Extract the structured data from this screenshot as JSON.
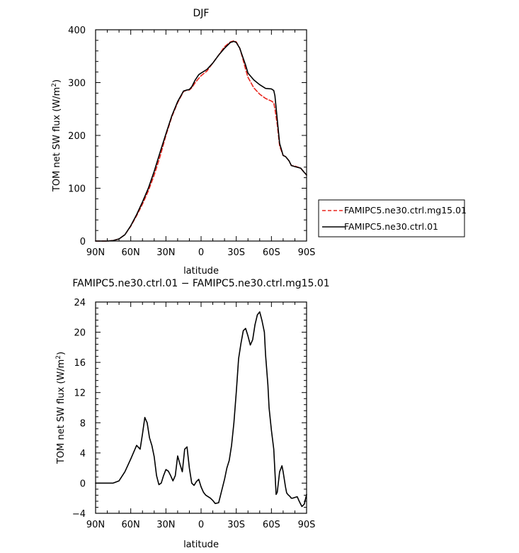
{
  "chart_data": [
    {
      "type": "line",
      "title": "DJF",
      "xlabel": "latitude",
      "ylabel": "TOM net SW flux (W/m",
      "ylabel_sup": "2",
      "ylabel_close": ")",
      "xlim": [
        -90,
        90
      ],
      "ylim": [
        0,
        400
      ],
      "xticks": [
        -90,
        -60,
        -30,
        0,
        30,
        60,
        90
      ],
      "xtick_labels": [
        "90N",
        "60N",
        "30N",
        "0",
        "30S",
        "60S",
        "90S"
      ],
      "yticks": [
        0,
        100,
        200,
        300,
        400
      ],
      "ytick_labels": [
        "0",
        "100",
        "200",
        "300",
        "400"
      ],
      "grid": false,
      "legend_position": "right",
      "series": [
        {
          "name": "FAMIPC5.ne30.ctrl.mg15.01",
          "color": "#e8241c",
          "dash": "dashed",
          "x": [
            -90,
            -80,
            -75,
            -70,
            -65,
            -60,
            -55,
            -50,
            -45,
            -40,
            -35,
            -30,
            -25,
            -20,
            -15,
            -12,
            -10,
            -8,
            -5,
            -2,
            0,
            5,
            10,
            15,
            20,
            25,
            28,
            30,
            33,
            35,
            38,
            40,
            45,
            50,
            55,
            60,
            62,
            63,
            65,
            67,
            70,
            72,
            75,
            77,
            80,
            85,
            88,
            90
          ],
          "y": [
            0,
            0,
            1,
            4,
            12,
            28,
            48,
            70,
            95,
            125,
            160,
            200,
            235,
            262,
            283,
            286,
            286,
            290,
            300,
            308,
            313,
            322,
            337,
            352,
            368,
            377,
            379,
            377,
            365,
            350,
            325,
            310,
            290,
            278,
            270,
            265,
            262,
            250,
            220,
            180,
            162,
            160,
            152,
            143,
            142,
            138,
            130,
            125
          ]
        },
        {
          "name": "FAMIPC5.ne30.ctrl.01",
          "color": "#000000",
          "dash": "solid",
          "x": [
            -90,
            -80,
            -75,
            -70,
            -65,
            -60,
            -55,
            -50,
            -45,
            -40,
            -35,
            -30,
            -25,
            -20,
            -15,
            -12,
            -10,
            -8,
            -5,
            -2,
            0,
            5,
            10,
            15,
            20,
            25,
            28,
            30,
            33,
            35,
            38,
            40,
            45,
            50,
            55,
            60,
            62,
            63,
            65,
            67,
            70,
            72,
            75,
            77,
            80,
            85,
            88,
            90
          ],
          "y": [
            0,
            0,
            1,
            4,
            12,
            29,
            50,
            74,
            100,
            132,
            168,
            203,
            237,
            264,
            284,
            286,
            287,
            292,
            305,
            315,
            318,
            325,
            337,
            352,
            365,
            376,
            378,
            376,
            365,
            352,
            333,
            318,
            305,
            296,
            289,
            288,
            285,
            275,
            230,
            185,
            162,
            160,
            152,
            143,
            141,
            138,
            130,
            125
          ]
        }
      ]
    },
    {
      "type": "line",
      "title": "FAMIPC5.ne30.ctrl.01 − FAMIPC5.ne30.ctrl.mg15.01",
      "xlabel": "latitude",
      "ylabel": "TOM net SW flux (W/m",
      "ylabel_sup": "2",
      "ylabel_close": ")",
      "xlim": [
        -90,
        90
      ],
      "ylim": [
        -4,
        24
      ],
      "xticks": [
        -90,
        -60,
        -30,
        0,
        30,
        60,
        90
      ],
      "xtick_labels": [
        "90N",
        "60N",
        "30N",
        "0",
        "30S",
        "60S",
        "90S"
      ],
      "yticks": [
        -4,
        0,
        4,
        8,
        12,
        16,
        20,
        24
      ],
      "ytick_labels": [
        "−4",
        "0",
        "4",
        "8",
        "12",
        "16",
        "20",
        "24"
      ],
      "grid": false,
      "series": [
        {
          "color": "#000000",
          "dash": "solid",
          "x": [
            -90,
            -75,
            -70,
            -65,
            -60,
            -55,
            -52,
            -50,
            -48,
            -46,
            -44,
            -42,
            -40,
            -38,
            -36,
            -34,
            -32,
            -30,
            -28,
            -26,
            -24,
            -22,
            -20,
            -18,
            -16,
            -14,
            -12,
            -10,
            -8,
            -6,
            -4,
            -2,
            0,
            2,
            4,
            6,
            8,
            10,
            12,
            15,
            20,
            22,
            24,
            26,
            28,
            30,
            32,
            34,
            36,
            38,
            40,
            42,
            44,
            46,
            48,
            50,
            52,
            54,
            55,
            57,
            58,
            60,
            62,
            63,
            64,
            65,
            67,
            69,
            70,
            72,
            73,
            74,
            76,
            77,
            78,
            80,
            82,
            84,
            86,
            88,
            90
          ],
          "y": [
            0,
            0,
            0.3,
            1.5,
            3.2,
            5.0,
            4.5,
            6.5,
            8.7,
            8.0,
            6.0,
            5.0,
            3.5,
            1.0,
            -0.2,
            0,
            1.0,
            1.8,
            1.6,
            1.0,
            0.3,
            1.0,
            3.6,
            2.5,
            1.5,
            4.5,
            4.8,
            2.0,
            0,
            -0.3,
            0.2,
            0.5,
            -0.5,
            -1.2,
            -1.6,
            -1.8,
            -2.0,
            -2.3,
            -2.7,
            -2.6,
            0.5,
            2.0,
            3.0,
            5.0,
            8.0,
            12.0,
            16.5,
            18.5,
            20.2,
            20.5,
            19.5,
            18.3,
            19.0,
            21.0,
            22.3,
            22.7,
            21.5,
            20.0,
            17.0,
            13.0,
            10.0,
            7.0,
            4.5,
            1.5,
            -1.5,
            -1.2,
            1.5,
            2.3,
            1.5,
            -0.5,
            -1.3,
            -1.5,
            -1.8,
            -2.0,
            -2.0,
            -1.9,
            -1.8,
            -2.5,
            -3.1,
            -2.8,
            -1.5
          ]
        }
      ]
    }
  ]
}
